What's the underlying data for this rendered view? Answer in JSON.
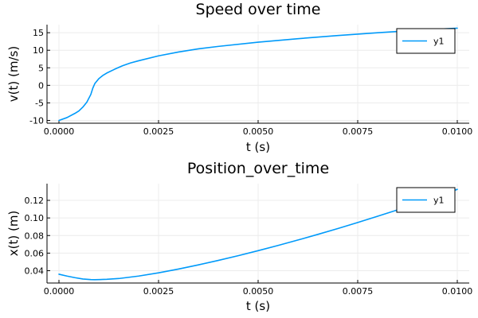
{
  "figure": {
    "colors": {
      "series": "#009AFA",
      "grid": "#ECECEC",
      "axis": "#000000",
      "background": "#FFFFFF"
    }
  },
  "chart_data": [
    {
      "type": "line",
      "title": "Speed over time",
      "xlabel": "t (s)",
      "ylabel": "v(t) (m/s)",
      "xlim": [
        -0.0003,
        0.0103
      ],
      "ylim": [
        -10.8,
        17.3
      ],
      "xticks": [
        0,
        0.0025,
        0.005,
        0.0075,
        0.01
      ],
      "xtick_labels": [
        "0.0000",
        "0.0025",
        "0.0050",
        "0.0075",
        "0.0100"
      ],
      "yticks": [
        -10,
        -5,
        0,
        5,
        10,
        15
      ],
      "ytick_labels": [
        "-10",
        "-5",
        "0",
        "5",
        "10",
        "15"
      ],
      "grid": true,
      "legend": "top-right",
      "series": [
        {
          "name": "y1",
          "x": [
            0,
            0.0002,
            0.0004,
            0.0005,
            0.0006,
            0.0007,
            0.0008,
            0.00085,
            0.0009,
            0.001,
            0.0011,
            0.0012,
            0.0014,
            0.0016,
            0.0018,
            0.002,
            0.0025,
            0.003,
            0.0035,
            0.004,
            0.005,
            0.006,
            0.007,
            0.008,
            0.009,
            0.01
          ],
          "y": [
            -10,
            -9.2,
            -8.0,
            -7.3,
            -6.2,
            -4.8,
            -2.6,
            -0.8,
            0.5,
            1.9,
            2.8,
            3.5,
            4.6,
            5.6,
            6.4,
            7.0,
            8.4,
            9.5,
            10.4,
            11.1,
            12.3,
            13.3,
            14.2,
            15.0,
            15.7,
            16.3
          ]
        }
      ]
    },
    {
      "type": "line",
      "title": "Position_over_time",
      "xlabel": "t (s)",
      "ylabel": "x(t) (m)",
      "xlim": [
        -0.0003,
        0.0103
      ],
      "ylim": [
        0.026,
        0.139
      ],
      "xticks": [
        0,
        0.0025,
        0.005,
        0.0075,
        0.01
      ],
      "xtick_labels": [
        "0.0000",
        "0.0025",
        "0.0050",
        "0.0075",
        "0.0100"
      ],
      "yticks": [
        0.04,
        0.06,
        0.08,
        0.1,
        0.12
      ],
      "ytick_labels": [
        "0.04",
        "0.06",
        "0.08",
        "0.10",
        "0.12"
      ],
      "grid": true,
      "legend": "top-right",
      "series": [
        {
          "name": "y1",
          "x": [
            0,
            0.0002,
            0.0004,
            0.0006,
            0.0008,
            0.0009,
            0.001,
            0.0012,
            0.0015,
            0.002,
            0.0025,
            0.003,
            0.0035,
            0.004,
            0.0045,
            0.005,
            0.0055,
            0.006,
            0.0065,
            0.007,
            0.0075,
            0.008,
            0.0085,
            0.009,
            0.0095,
            0.01
          ],
          "y": [
            0.036,
            0.0339,
            0.0321,
            0.0306,
            0.0299,
            0.0298,
            0.0299,
            0.0302,
            0.0311,
            0.0339,
            0.0376,
            0.0419,
            0.0466,
            0.0517,
            0.0571,
            0.0628,
            0.0687,
            0.0749,
            0.0813,
            0.0879,
            0.0948,
            0.1019,
            0.1092,
            0.1167,
            0.1244,
            0.1325
          ]
        }
      ]
    }
  ]
}
